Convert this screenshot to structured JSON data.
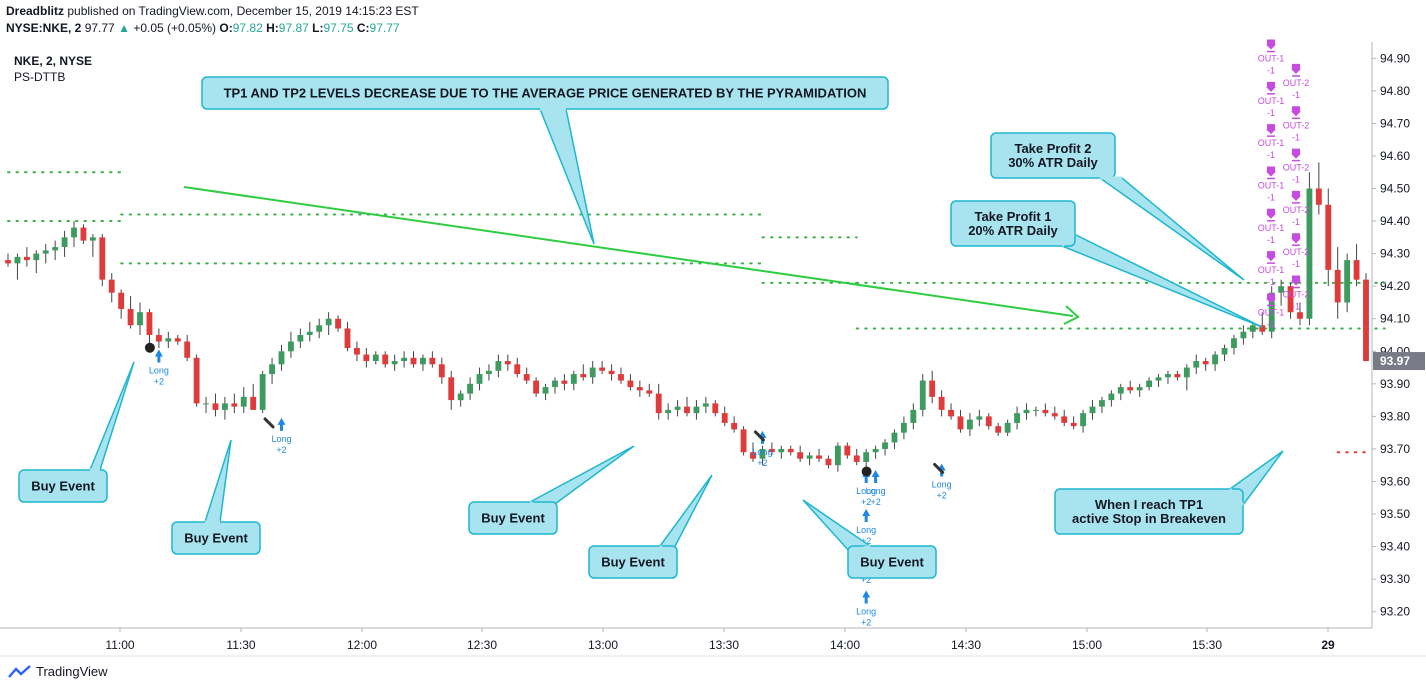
{
  "header": {
    "author": "Dreadblitz",
    "published_text": "published on TradingView.com, December 15, 2019 14:15:23 EST",
    "symbol": "NYSE:NKE, 2",
    "last": "97.77",
    "change": "+0.05 (+0.05%)",
    "o_label": "O:",
    "o": "97.82",
    "h_label": "H:",
    "h": "97.87",
    "l_label": "L:",
    "l": "97.75",
    "c_label": "C:",
    "c": "97.77"
  },
  "legend": {
    "series": "NKE, 2, NYSE",
    "indicator": "PS-DTTB"
  },
  "footer": {
    "brand": "TradingView"
  },
  "colors": {
    "up": "#3e9b5f",
    "down": "#e03b3b",
    "annotation_fill": "#a8e4ef",
    "annotation_stroke": "#1fb6d0",
    "tp_dots": "#3cb04a",
    "stop_dots": "#e53935",
    "arrow_line": "#2ecc40",
    "signal": "#1e88e5",
    "exit": "#c64be0"
  },
  "chart_data": {
    "type": "candlestick",
    "x_ticks": [
      "11:00",
      "11:30",
      "12:00",
      "12:30",
      "13:00",
      "13:30",
      "14:00",
      "14:30",
      "15:00",
      "15:30",
      "29"
    ],
    "y_ticks": [
      "94.90",
      "94.80",
      "94.70",
      "94.60",
      "94.50",
      "94.40",
      "94.30",
      "94.20",
      "94.10",
      "94.00",
      "93.90",
      "93.80",
      "93.70",
      "93.60",
      "93.50",
      "93.40",
      "93.30",
      "93.20"
    ],
    "ylim": [
      93.15,
      94.95
    ],
    "last_price_label": "93.97",
    "candles": [
      [
        94.28,
        94.3,
        94.26,
        94.27
      ],
      [
        94.27,
        94.3,
        94.22,
        94.29
      ],
      [
        94.29,
        94.32,
        94.26,
        94.28
      ],
      [
        94.28,
        94.31,
        94.24,
        94.3
      ],
      [
        94.3,
        94.33,
        94.27,
        94.31
      ],
      [
        94.31,
        94.34,
        94.28,
        94.32
      ],
      [
        94.32,
        94.37,
        94.29,
        94.35
      ],
      [
        94.35,
        94.4,
        94.32,
        94.38
      ],
      [
        94.38,
        94.39,
        94.33,
        94.34
      ],
      [
        94.34,
        94.36,
        94.29,
        94.35
      ],
      [
        94.35,
        94.36,
        94.2,
        94.22
      ],
      [
        94.22,
        94.24,
        94.15,
        94.18
      ],
      [
        94.18,
        94.19,
        94.1,
        94.13
      ],
      [
        94.13,
        94.17,
        94.07,
        94.08
      ],
      [
        94.08,
        94.15,
        94.05,
        94.12
      ],
      [
        94.12,
        94.13,
        94.02,
        94.05
      ],
      [
        94.05,
        94.07,
        94.01,
        94.03
      ],
      [
        94.03,
        94.06,
        94.01,
        94.04
      ],
      [
        94.04,
        94.05,
        94.02,
        94.03
      ],
      [
        94.03,
        94.05,
        93.97,
        93.98
      ],
      [
        93.98,
        93.99,
        93.83,
        93.84
      ],
      [
        93.84,
        93.86,
        93.81,
        93.84
      ],
      [
        93.84,
        93.87,
        93.8,
        93.82
      ],
      [
        93.82,
        93.86,
        93.79,
        93.84
      ],
      [
        93.84,
        93.87,
        93.81,
        93.83
      ],
      [
        93.83,
        93.89,
        93.81,
        93.86
      ],
      [
        93.86,
        93.9,
        93.82,
        93.82
      ],
      [
        93.82,
        93.94,
        93.81,
        93.93
      ],
      [
        93.93,
        93.98,
        93.9,
        93.96
      ],
      [
        93.96,
        94.02,
        93.94,
        94.0
      ],
      [
        94.0,
        94.06,
        93.98,
        94.03
      ],
      [
        94.03,
        94.07,
        94.01,
        94.05
      ],
      [
        94.05,
        94.09,
        94.03,
        94.06
      ],
      [
        94.06,
        94.1,
        94.04,
        94.08
      ],
      [
        94.08,
        94.12,
        94.05,
        94.1
      ],
      [
        94.1,
        94.11,
        94.06,
        94.07
      ],
      [
        94.07,
        94.09,
        94.0,
        94.01
      ],
      [
        94.01,
        94.03,
        93.97,
        93.99
      ],
      [
        93.99,
        94.01,
        93.95,
        93.97
      ],
      [
        93.97,
        94.0,
        93.96,
        93.99
      ],
      [
        93.99,
        94.0,
        93.95,
        93.96
      ],
      [
        93.96,
        93.99,
        93.94,
        93.97
      ],
      [
        93.97,
        94.0,
        93.95,
        93.98
      ],
      [
        93.98,
        94.0,
        93.95,
        93.96
      ],
      [
        93.96,
        93.99,
        93.94,
        93.98
      ],
      [
        93.98,
        94.0,
        93.95,
        93.96
      ],
      [
        93.96,
        93.98,
        93.9,
        93.92
      ],
      [
        93.92,
        93.94,
        93.82,
        93.85
      ],
      [
        93.85,
        93.88,
        93.83,
        93.87
      ],
      [
        93.87,
        93.92,
        93.85,
        93.9
      ],
      [
        93.9,
        93.95,
        93.88,
        93.93
      ],
      [
        93.93,
        93.96,
        93.91,
        93.94
      ],
      [
        93.94,
        93.99,
        93.92,
        93.97
      ],
      [
        93.97,
        93.99,
        93.94,
        93.96
      ],
      [
        93.96,
        93.98,
        93.92,
        93.93
      ],
      [
        93.93,
        93.95,
        93.9,
        93.91
      ],
      [
        93.91,
        93.92,
        93.86,
        93.87
      ],
      [
        93.87,
        93.9,
        93.85,
        93.89
      ],
      [
        93.89,
        93.92,
        93.87,
        93.91
      ],
      [
        93.91,
        93.93,
        93.88,
        93.9
      ],
      [
        93.9,
        93.94,
        93.88,
        93.93
      ],
      [
        93.93,
        93.96,
        93.91,
        93.92
      ],
      [
        93.92,
        93.97,
        93.9,
        93.95
      ],
      [
        93.95,
        93.97,
        93.93,
        93.94
      ],
      [
        93.94,
        93.96,
        93.91,
        93.93
      ],
      [
        93.93,
        93.95,
        93.9,
        93.91
      ],
      [
        93.91,
        93.93,
        93.88,
        93.89
      ],
      [
        93.89,
        93.91,
        93.86,
        93.88
      ],
      [
        93.88,
        93.9,
        93.86,
        93.87
      ],
      [
        93.87,
        93.9,
        93.79,
        93.81
      ],
      [
        93.81,
        93.84,
        93.79,
        93.82
      ],
      [
        93.82,
        93.85,
        93.8,
        93.83
      ],
      [
        93.83,
        93.86,
        93.8,
        93.81
      ],
      [
        93.81,
        93.85,
        93.79,
        93.83
      ],
      [
        93.83,
        93.86,
        93.81,
        93.84
      ],
      [
        93.84,
        93.85,
        93.8,
        93.81
      ],
      [
        93.81,
        93.83,
        93.77,
        93.78
      ],
      [
        93.78,
        93.8,
        93.75,
        93.76
      ],
      [
        93.76,
        93.77,
        93.68,
        93.69
      ],
      [
        93.69,
        93.72,
        93.66,
        93.67
      ],
      [
        93.67,
        93.71,
        93.65,
        93.7
      ],
      [
        93.7,
        93.72,
        93.68,
        93.69
      ],
      [
        93.69,
        93.71,
        93.67,
        93.7
      ],
      [
        93.7,
        93.71,
        93.68,
        93.69
      ],
      [
        93.69,
        93.71,
        93.66,
        93.67
      ],
      [
        93.67,
        93.69,
        93.65,
        93.68
      ],
      [
        93.68,
        93.7,
        93.66,
        93.67
      ],
      [
        93.67,
        93.68,
        93.64,
        93.65
      ],
      [
        93.65,
        93.72,
        93.63,
        93.71
      ],
      [
        93.71,
        93.72,
        93.67,
        93.68
      ],
      [
        93.68,
        93.7,
        93.65,
        93.66
      ],
      [
        93.66,
        93.7,
        93.64,
        93.69
      ],
      [
        93.69,
        93.71,
        93.67,
        93.7
      ],
      [
        93.7,
        93.73,
        93.68,
        93.72
      ],
      [
        93.72,
        93.76,
        93.7,
        93.75
      ],
      [
        93.75,
        93.8,
        93.73,
        93.78
      ],
      [
        93.78,
        93.84,
        93.76,
        93.82
      ],
      [
        93.82,
        93.93,
        93.8,
        93.91
      ],
      [
        93.91,
        93.94,
        93.84,
        93.86
      ],
      [
        93.86,
        93.88,
        93.8,
        93.82
      ],
      [
        93.82,
        93.84,
        93.79,
        93.8
      ],
      [
        93.8,
        93.82,
        93.75,
        93.76
      ],
      [
        93.76,
        93.81,
        93.74,
        93.79
      ],
      [
        93.79,
        93.82,
        93.77,
        93.8
      ],
      [
        93.8,
        93.81,
        93.76,
        93.77
      ],
      [
        93.77,
        93.78,
        93.74,
        93.75
      ],
      [
        93.75,
        93.79,
        93.74,
        93.78
      ],
      [
        93.78,
        93.83,
        93.76,
        93.81
      ],
      [
        93.81,
        93.84,
        93.79,
        93.82
      ],
      [
        93.82,
        93.83,
        93.8,
        93.82
      ],
      [
        93.82,
        93.84,
        93.8,
        93.81
      ],
      [
        93.81,
        93.83,
        93.79,
        93.8
      ],
      [
        93.8,
        93.82,
        93.77,
        93.78
      ],
      [
        93.78,
        93.8,
        93.76,
        93.77
      ],
      [
        93.77,
        93.82,
        93.75,
        93.81
      ],
      [
        93.81,
        93.85,
        93.79,
        93.83
      ],
      [
        93.83,
        93.86,
        93.81,
        93.85
      ],
      [
        93.85,
        93.88,
        93.83,
        93.87
      ],
      [
        93.87,
        93.9,
        93.85,
        93.89
      ],
      [
        93.89,
        93.91,
        93.87,
        93.88
      ],
      [
        93.88,
        93.9,
        93.86,
        93.89
      ],
      [
        93.89,
        93.92,
        93.88,
        93.91
      ],
      [
        93.91,
        93.93,
        93.89,
        93.92
      ],
      [
        93.92,
        93.94,
        93.9,
        93.93
      ],
      [
        93.93,
        93.94,
        93.91,
        93.92
      ],
      [
        93.92,
        93.96,
        93.88,
        93.95
      ],
      [
        93.95,
        93.99,
        93.93,
        93.97
      ],
      [
        93.97,
        93.98,
        93.94,
        93.96
      ],
      [
        93.96,
        94.0,
        93.94,
        93.99
      ],
      [
        93.99,
        94.02,
        93.97,
        94.01
      ],
      [
        94.01,
        94.05,
        93.99,
        94.04
      ],
      [
        94.04,
        94.08,
        94.02,
        94.06
      ],
      [
        94.06,
        94.09,
        94.04,
        94.08
      ],
      [
        94.08,
        94.12,
        94.05,
        94.06
      ],
      [
        94.06,
        94.2,
        94.04,
        94.18
      ],
      [
        94.18,
        94.22,
        94.14,
        94.2
      ],
      [
        94.2,
        94.21,
        94.1,
        94.12
      ],
      [
        94.12,
        94.15,
        94.08,
        94.1
      ],
      [
        94.1,
        94.55,
        94.08,
        94.5
      ],
      [
        94.5,
        94.58,
        94.42,
        94.45
      ],
      [
        94.45,
        94.5,
        94.2,
        94.25
      ],
      [
        94.25,
        94.32,
        94.1,
        94.15
      ],
      [
        94.15,
        94.3,
        94.12,
        94.28
      ],
      [
        94.28,
        94.33,
        94.2,
        94.22
      ],
      [
        94.22,
        94.24,
        93.98,
        93.97
      ]
    ],
    "levels": [
      {
        "name": "TP2",
        "y": 94.55,
        "from": 0,
        "to": 12
      },
      {
        "name": "TP1",
        "y": 94.4,
        "from": 0,
        "to": 12
      },
      {
        "name": "TP2",
        "y": 94.42,
        "from": 12,
        "to": 80
      },
      {
        "name": "TP1",
        "y": 94.27,
        "from": 12,
        "to": 80
      },
      {
        "name": "TP2",
        "y": 94.35,
        "from": 80,
        "to": 90
      },
      {
        "name": "TP1",
        "y": 94.21,
        "from": 80,
        "to": 90
      },
      {
        "name": "TP2",
        "y": 94.21,
        "from": 90,
        "to": 146
      },
      {
        "name": "TP1",
        "y": 94.07,
        "from": 90,
        "to": 146
      },
      {
        "name": "Stop",
        "y": 93.69,
        "from": 141,
        "to": 144
      }
    ],
    "signals": [
      {
        "label": "Long",
        "qty": "+2",
        "i": 16,
        "y": 93.99
      },
      {
        "label": "Long",
        "qty": "+2",
        "i": 29,
        "y": 93.78
      },
      {
        "label": "Long",
        "qty": "+2",
        "i": 80,
        "y": 93.74
      },
      {
        "label": "Long",
        "qty": "+2",
        "i": 91,
        "y": 93.62
      },
      {
        "label": "Long",
        "qty": "+2",
        "i": 92,
        "y": 93.62
      },
      {
        "label": "Long",
        "qty": "+2",
        "i": 91,
        "y": 93.5
      },
      {
        "label": "Long",
        "qty": "+2",
        "i": 91,
        "y": 93.38
      },
      {
        "label": "Long",
        "qty": "+2",
        "i": 91,
        "y": 93.25
      },
      {
        "label": "Long",
        "qty": "+2",
        "i": 99,
        "y": 93.64
      }
    ],
    "exits": [
      {
        "label": "OUT-1",
        "qty": "-1",
        "y": 94.93
      },
      {
        "label": "OUT-1",
        "qty": "-1",
        "y": 94.8
      },
      {
        "label": "OUT-1",
        "qty": "-1",
        "y": 94.67
      },
      {
        "label": "OUT-1",
        "qty": "-1",
        "y": 94.54
      },
      {
        "label": "OUT-1",
        "qty": "-1",
        "y": 94.41
      },
      {
        "label": "OUT-1",
        "qty": "-1",
        "y": 94.28
      },
      {
        "label": "OUT-1",
        "qty": "-1",
        "y": 94.15
      }
    ],
    "exits2": [
      {
        "label": "OUT-2",
        "qty": "-1",
        "y": 94.93
      },
      {
        "label": "OUT-2",
        "qty": "-1",
        "y": 94.8
      },
      {
        "label": "OUT-2",
        "qty": "-1",
        "y": 94.67
      },
      {
        "label": "OUT-2",
        "qty": "-1",
        "y": 94.54
      },
      {
        "label": "OUT-2",
        "qty": "-1",
        "y": 94.41
      },
      {
        "label": "OUT-2",
        "qty": "-1",
        "y": 94.28
      }
    ],
    "annotations": [
      {
        "text": [
          "TP1 AND TP2 LEVELS DECREASE DUE TO THE AVERAGE PRICE GENERATED BY THE PYRAMIDATION"
        ]
      },
      {
        "text": [
          "Take Profit 2",
          "30% ATR Daily"
        ]
      },
      {
        "text": [
          "Take Profit 1",
          "20% ATR Daily"
        ]
      },
      {
        "text": [
          "Buy Event"
        ]
      },
      {
        "text": [
          "Buy Event"
        ]
      },
      {
        "text": [
          "Buy Event"
        ]
      },
      {
        "text": [
          "Buy Event"
        ]
      },
      {
        "text": [
          "Buy Event"
        ]
      },
      {
        "text": [
          "When I reach TP1",
          "active Stop in Breakeven"
        ]
      }
    ]
  }
}
